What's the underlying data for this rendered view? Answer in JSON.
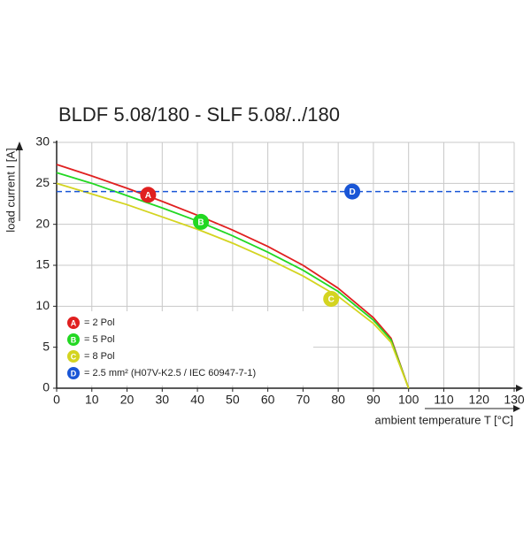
{
  "chart_data": {
    "type": "line",
    "title": "BLDF 5.08/180 - SLF 5.08/../180",
    "x_label": "ambient temperature T [°C]",
    "y_label": "load current I [A]",
    "xlim": [
      0,
      130
    ],
    "ylim": [
      0,
      30
    ],
    "xticks": [
      0,
      10,
      20,
      30,
      40,
      50,
      60,
      70,
      80,
      90,
      100,
      110,
      120,
      130
    ],
    "yticks": [
      0,
      5,
      10,
      15,
      20,
      25,
      30
    ],
    "grid": true,
    "series": [
      {
        "name": "= 2 Pol",
        "color": "#e02020",
        "x": [
          0,
          10,
          20,
          30,
          40,
          50,
          60,
          70,
          80,
          90,
          95,
          100
        ],
        "values": [
          27.3,
          25.9,
          24.4,
          22.8,
          21.1,
          19.3,
          17.3,
          15.0,
          12.2,
          8.6,
          6.1,
          0
        ],
        "marker": {
          "label": "A",
          "x": 26,
          "y": 23.6
        }
      },
      {
        "name": "= 5 Pol",
        "color": "#22d822",
        "x": [
          0,
          10,
          20,
          30,
          40,
          50,
          60,
          70,
          80,
          90,
          95,
          100
        ],
        "values": [
          26.3,
          25.0,
          23.5,
          22.0,
          20.4,
          18.6,
          16.6,
          14.4,
          11.8,
          8.3,
          5.9,
          0
        ],
        "marker": {
          "label": "B",
          "x": 41,
          "y": 20.3
        }
      },
      {
        "name": "= 8 Pol",
        "color": "#d4d420",
        "x": [
          0,
          10,
          20,
          30,
          40,
          50,
          60,
          70,
          80,
          90,
          95,
          100
        ],
        "values": [
          25,
          23.7,
          22.4,
          20.9,
          19.4,
          17.7,
          15.8,
          13.7,
          11.2,
          7.9,
          5.6,
          0
        ],
        "marker": {
          "label": "C",
          "x": 78,
          "y": 10.9
        }
      },
      {
        "name": "= 2.5 mm² (H07V-K2.5 / IEC 60947-7-1)",
        "color": "#1a56d6",
        "dashed": true,
        "x": [
          0,
          130
        ],
        "values": [
          24,
          24
        ],
        "marker": {
          "label": "D",
          "x": 84,
          "y": 24
        }
      }
    ]
  }
}
